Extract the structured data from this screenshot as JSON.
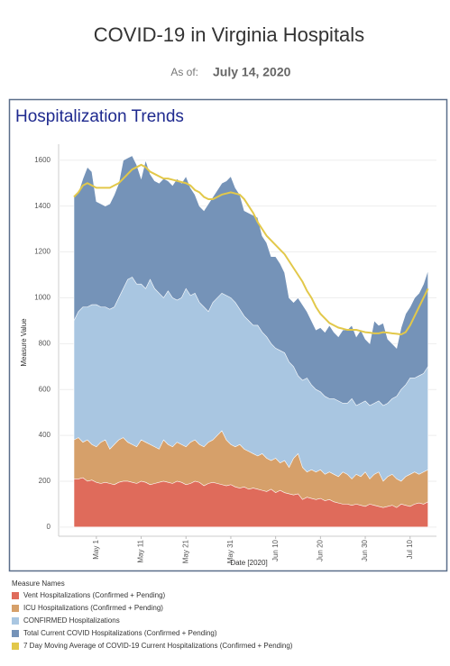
{
  "header": {
    "title": "COVID-19 in Virginia Hospitals",
    "as_of_label": "As of:",
    "as_of_date": "July 14, 2020"
  },
  "chart_data": {
    "type": "area",
    "title": "Hospitalization Trends",
    "ylabel": "Measure Value",
    "xlabel": "Date [2020]",
    "legend_title": "Measure Names",
    "grid": true,
    "ylim": [
      -40,
      1670
    ],
    "yticks": [
      0,
      200,
      400,
      600,
      800,
      1000,
      1200,
      1400,
      1600
    ],
    "categories": [
      null,
      null,
      null,
      null,
      null,
      "May 1",
      null,
      null,
      null,
      null,
      null,
      null,
      null,
      null,
      null,
      "May 11",
      null,
      null,
      null,
      null,
      null,
      null,
      null,
      null,
      null,
      "May 21",
      null,
      null,
      null,
      null,
      null,
      null,
      null,
      null,
      null,
      "May 31",
      null,
      null,
      null,
      null,
      null,
      null,
      null,
      null,
      null,
      "Jun 10",
      null,
      null,
      null,
      null,
      null,
      null,
      null,
      null,
      null,
      "Jun 20",
      null,
      null,
      null,
      null,
      null,
      null,
      null,
      null,
      null,
      "Jun 30",
      null,
      null,
      null,
      null,
      null,
      null,
      null,
      null,
      null,
      "Jul 10",
      null,
      null,
      null,
      null
    ],
    "series": [
      {
        "name": "Vent Hospitalizations (Confirmed + Pending)",
        "color": "#df6b5b",
        "values": [
          210,
          210,
          215,
          200,
          205,
          195,
          190,
          195,
          190,
          185,
          195,
          200,
          200,
          195,
          190,
          200,
          195,
          185,
          190,
          195,
          200,
          195,
          190,
          200,
          195,
          185,
          190,
          200,
          195,
          180,
          190,
          195,
          190,
          185,
          180,
          185,
          175,
          170,
          175,
          165,
          170,
          165,
          160,
          155,
          165,
          150,
          160,
          150,
          145,
          140,
          145,
          120,
          130,
          125,
          120,
          125,
          115,
          120,
          110,
          105,
          100,
          100,
          95,
          100,
          95,
          90,
          100,
          95,
          90,
          85,
          90,
          95,
          85,
          100,
          95,
          90,
          100,
          105,
          100,
          110
        ]
      },
      {
        "name": "ICU Hospitalizations (Confirmed + Pending)",
        "color": "#d6a06a",
        "values": [
          380,
          390,
          370,
          380,
          360,
          350,
          370,
          380,
          340,
          360,
          380,
          390,
          370,
          360,
          350,
          380,
          370,
          360,
          350,
          340,
          380,
          360,
          350,
          370,
          360,
          350,
          370,
          380,
          360,
          350,
          370,
          380,
          400,
          420,
          380,
          360,
          350,
          360,
          340,
          330,
          320,
          310,
          320,
          300,
          290,
          300,
          280,
          290,
          260,
          300,
          320,
          260,
          240,
          250,
          240,
          250,
          230,
          240,
          230,
          220,
          240,
          230,
          210,
          230,
          220,
          240,
          210,
          230,
          240,
          200,
          220,
          230,
          210,
          200,
          220,
          230,
          240,
          230,
          240,
          250
        ]
      },
      {
        "name": "CONFIRMED Hospitalizations",
        "color": "#a9c6e1",
        "values": [
          900,
          940,
          960,
          960,
          970,
          970,
          960,
          960,
          950,
          960,
          1000,
          1040,
          1080,
          1090,
          1060,
          1060,
          1040,
          1080,
          1040,
          1020,
          1000,
          1030,
          1000,
          990,
          1000,
          1040,
          1010,
          1020,
          980,
          960,
          940,
          980,
          1000,
          1020,
          1010,
          1000,
          980,
          950,
          920,
          900,
          880,
          880,
          850,
          830,
          800,
          780,
          770,
          760,
          720,
          700,
          660,
          640,
          650,
          620,
          600,
          590,
          570,
          560,
          560,
          550,
          540,
          540,
          560,
          530,
          540,
          550,
          530,
          540,
          550,
          530,
          540,
          560,
          570,
          600,
          620,
          650,
          650,
          660,
          670,
          700
        ]
      },
      {
        "name": "Total Current COVID Hospitalizations (Confirmed + Pending)",
        "color": "#7593b8",
        "values": [
          1440,
          1460,
          1520,
          1570,
          1550,
          1420,
          1410,
          1400,
          1410,
          1450,
          1500,
          1600,
          1610,
          1620,
          1580,
          1520,
          1600,
          1540,
          1510,
          1500,
          1520,
          1510,
          1490,
          1520,
          1500,
          1530,
          1480,
          1450,
          1400,
          1380,
          1410,
          1440,
          1470,
          1500,
          1510,
          1530,
          1480,
          1450,
          1380,
          1370,
          1360,
          1350,
          1270,
          1240,
          1180,
          1180,
          1150,
          1110,
          1000,
          980,
          1000,
          970,
          940,
          900,
          860,
          870,
          850,
          880,
          850,
          830,
          860,
          860,
          880,
          830,
          860,
          820,
          800,
          900,
          880,
          890,
          820,
          800,
          780,
          870,
          930,
          960,
          1000,
          1020,
          1060,
          1120
        ]
      },
      {
        "name": "7 Day Moving Average of COVID-19 Current Hospitalizations (Confirmed + Pending)",
        "color": "#e2c84a",
        "type": "line",
        "values": [
          1440,
          1460,
          1490,
          1500,
          1490,
          1480,
          1480,
          1480,
          1480,
          1490,
          1500,
          1520,
          1540,
          1560,
          1570,
          1580,
          1570,
          1550,
          1540,
          1530,
          1520,
          1520,
          1515,
          1510,
          1505,
          1500,
          1490,
          1470,
          1460,
          1440,
          1430,
          1430,
          1440,
          1450,
          1455,
          1460,
          1455,
          1450,
          1430,
          1400,
          1370,
          1330,
          1300,
          1270,
          1250,
          1230,
          1210,
          1190,
          1160,
          1130,
          1100,
          1070,
          1030,
          1000,
          960,
          930,
          910,
          890,
          880,
          870,
          865,
          860,
          860,
          860,
          855,
          850,
          848,
          845,
          845,
          850,
          848,
          845,
          843,
          840,
          850,
          880,
          920,
          960,
          1000,
          1040
        ]
      }
    ]
  }
}
